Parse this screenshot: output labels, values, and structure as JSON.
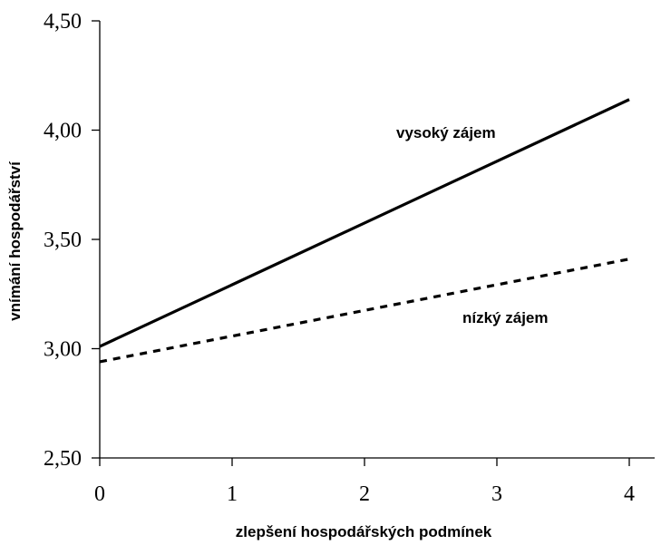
{
  "chart_data": {
    "type": "line",
    "xlabel": "zlepšení hospodářských podmínek",
    "ylabel": "vnímání hospodářství",
    "xlim": [
      0,
      4
    ],
    "ylim": [
      2.5,
      4.5
    ],
    "x_ticks": [
      0,
      1,
      2,
      3,
      4
    ],
    "x_tick_labels": [
      "0",
      "1",
      "2",
      "3",
      "4"
    ],
    "y_ticks": [
      2.5,
      3.0,
      3.5,
      4.0,
      4.5
    ],
    "y_tick_labels": [
      "2,50",
      "3,00",
      "3,50",
      "4,00",
      "4,50"
    ],
    "grid": false,
    "legend": "none",
    "series": [
      {
        "name": "vysoký zájem",
        "x": [
          0,
          4
        ],
        "values": [
          3.01,
          4.14
        ],
        "style": "solid",
        "color": "#000000"
      },
      {
        "name": "nízký zájem",
        "x": [
          0,
          4
        ],
        "values": [
          2.94,
          3.41
        ],
        "style": "dashed",
        "color": "#000000"
      }
    ]
  }
}
